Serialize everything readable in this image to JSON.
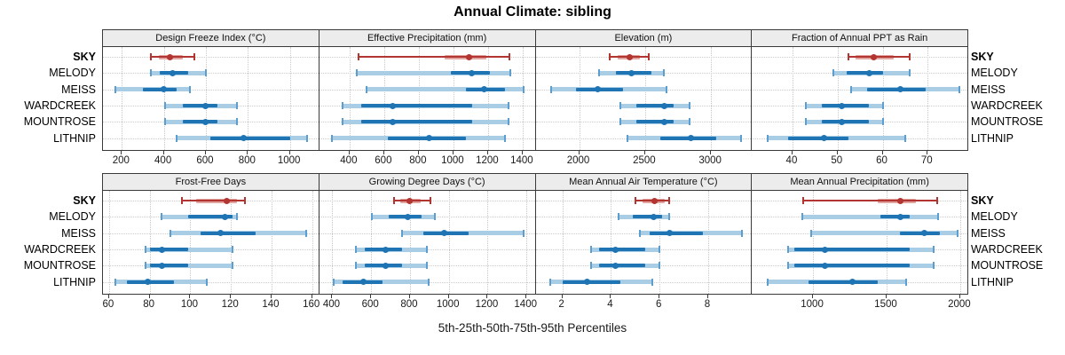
{
  "title": "Annual Climate: sibling",
  "caption": "5th-25th-50th-75th-95th Percentiles",
  "highlight_site": "SKY",
  "colors": {
    "highlight": "#b23531",
    "highlight_light": "#e2a49e",
    "normal": "#1f74b4",
    "normal_light": "#a8cde4",
    "normal_cap": "#5b9ecf",
    "grid": "#c9c9c9",
    "strip_bg": "#ececec",
    "panel_border": "#3a3a3a"
  },
  "chart_data": {
    "type": "dotplot-percentile-trellis",
    "title": "Annual Climate: sibling",
    "xlabel": "5th-25th-50th-75th-95th Percentiles",
    "percentiles": [
      5,
      25,
      50,
      75,
      95
    ],
    "grid": "dotted",
    "rows": [
      "SKY",
      "MELODY",
      "MEISS",
      "WARDCREEK",
      "MOUNTROSE",
      "LITHNIP"
    ],
    "panels": [
      {
        "label": "Design Freeze Index (°C)",
        "row": 0,
        "col": 0,
        "xlim": [
          110,
          1140
        ],
        "ticks": [
          200,
          400,
          600,
          800,
          1000
        ],
        "values": [
          [
            340,
            375,
            430,
            490,
            545
          ],
          [
            340,
            380,
            440,
            515,
            600
          ],
          [
            170,
            300,
            400,
            460,
            525
          ],
          [
            405,
            490,
            600,
            655,
            750
          ],
          [
            405,
            490,
            600,
            655,
            750
          ],
          [
            460,
            620,
            780,
            1000,
            1080
          ]
        ]
      },
      {
        "label": "Effective Precipitation (mm)",
        "row": 0,
        "col": 1,
        "xlim": [
          225,
          1475
        ],
        "ticks": [
          400,
          600,
          800,
          1000,
          1200,
          1400
        ],
        "values": [
          [
            450,
            950,
            1090,
            1190,
            1325
          ],
          [
            440,
            985,
            1105,
            1210,
            1330
          ],
          [
            500,
            1070,
            1180,
            1300,
            1405
          ],
          [
            360,
            465,
            650,
            1110,
            1320
          ],
          [
            360,
            465,
            650,
            1110,
            1320
          ],
          [
            300,
            620,
            860,
            1070,
            1300
          ]
        ]
      },
      {
        "label": "Elevation (m)",
        "row": 0,
        "col": 2,
        "xlim": [
          1670,
          3310
        ],
        "ticks": [
          2000,
          2500,
          3000
        ],
        "values": [
          [
            2230,
            2295,
            2385,
            2460,
            2530
          ],
          [
            2150,
            2280,
            2400,
            2545,
            2640
          ],
          [
            1785,
            1975,
            2140,
            2330,
            2660
          ],
          [
            2310,
            2435,
            2645,
            2715,
            2840
          ],
          [
            2310,
            2435,
            2645,
            2715,
            2840
          ],
          [
            2365,
            2615,
            2845,
            3040,
            3230
          ]
        ]
      },
      {
        "label": "Fraction of Annual PPT as Rain",
        "row": 0,
        "col": 3,
        "xlim": [
          31,
          79
        ],
        "ticks": [
          40,
          50,
          60,
          70
        ],
        "values": [
          [
            52.5,
            54,
            58,
            62.5,
            66
          ],
          [
            49,
            52,
            57,
            60,
            66
          ],
          [
            53,
            56.5,
            64,
            69.5,
            77
          ],
          [
            43,
            46.5,
            51,
            57,
            60
          ],
          [
            43,
            46.5,
            51,
            57,
            60
          ],
          [
            34.5,
            39,
            47,
            52.5,
            65
          ]
        ]
      },
      {
        "label": "Frost-Free Days",
        "row": 1,
        "col": 0,
        "xlim": [
          57,
          163.5
        ],
        "ticks": [
          60,
          80,
          100,
          120,
          140,
          160
        ],
        "values": [
          [
            96,
            103,
            118,
            123,
            127
          ],
          [
            86,
            99,
            117,
            121,
            123
          ],
          [
            90,
            105,
            115,
            132,
            157
          ],
          [
            78,
            80,
            86,
            99,
            121
          ],
          [
            78,
            80,
            86,
            99,
            121
          ],
          [
            63,
            69,
            79,
            92,
            108
          ]
        ]
      },
      {
        "label": "Growing Degree Days (°C)",
        "row": 1,
        "col": 1,
        "xlim": [
          333,
          1447
        ],
        "ticks": [
          400,
          600,
          800,
          1000,
          1200,
          1400
        ],
        "values": [
          [
            720,
            750,
            800,
            855,
            905
          ],
          [
            605,
            690,
            790,
            860,
            930
          ],
          [
            760,
            870,
            975,
            1100,
            1385
          ],
          [
            520,
            565,
            675,
            760,
            885
          ],
          [
            520,
            565,
            675,
            760,
            885
          ],
          [
            405,
            455,
            560,
            660,
            895
          ]
        ]
      },
      {
        "label": "Mean Annual Air Temperature (°C)",
        "row": 1,
        "col": 2,
        "xlim": [
          0.9,
          9.8
        ],
        "ticks": [
          2,
          4,
          6,
          8
        ],
        "values": [
          [
            5.0,
            5.3,
            5.8,
            6.2,
            6.4
          ],
          [
            4.3,
            4.9,
            5.75,
            6.1,
            6.4
          ],
          [
            5.2,
            5.6,
            6.4,
            7.8,
            9.4
          ],
          [
            3.2,
            3.5,
            4.2,
            5.4,
            6.0
          ],
          [
            3.2,
            3.5,
            4.2,
            5.4,
            6.0
          ],
          [
            1.5,
            2.0,
            3.0,
            4.4,
            5.7
          ]
        ]
      },
      {
        "label": "Mean Annual Precipitation (mm)",
        "row": 1,
        "col": 3,
        "xlim": [
          585,
          2055
        ],
        "ticks": [
          1000,
          1500,
          2000
        ],
        "values": [
          [
            935,
            1440,
            1595,
            1700,
            1845
          ],
          [
            925,
            1460,
            1595,
            1655,
            1850
          ],
          [
            990,
            1590,
            1755,
            1865,
            1985
          ],
          [
            830,
            870,
            1080,
            1660,
            1820
          ],
          [
            830,
            870,
            1080,
            1660,
            1820
          ],
          [
            695,
            970,
            1270,
            1440,
            1630
          ]
        ]
      }
    ]
  }
}
